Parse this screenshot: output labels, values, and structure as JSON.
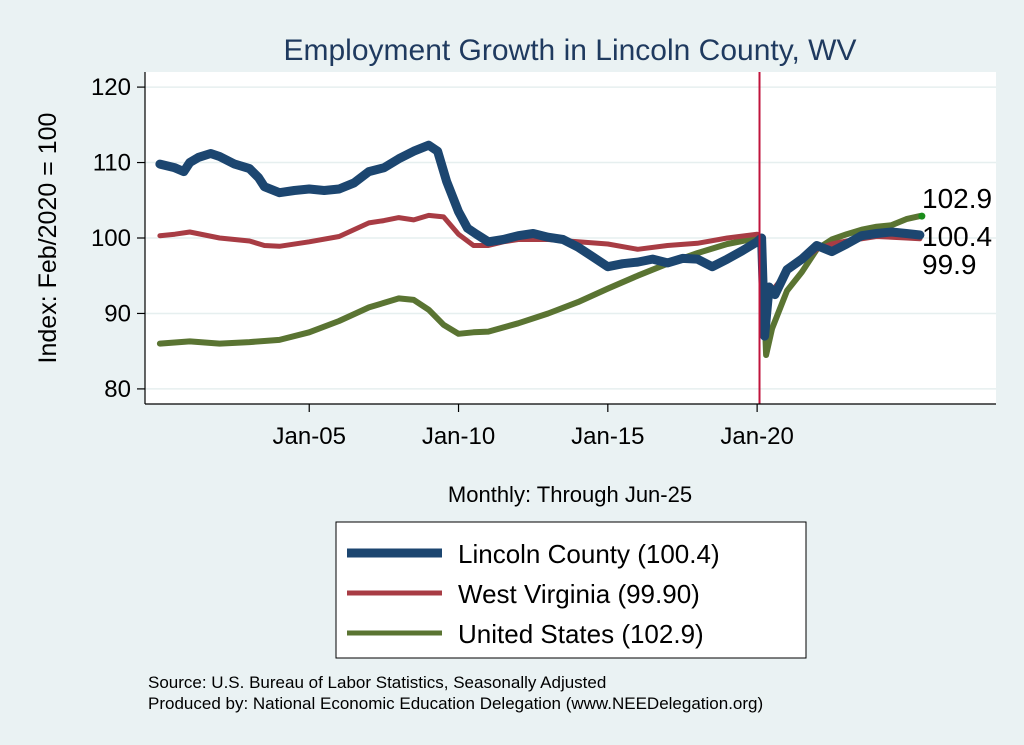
{
  "chart_data": {
    "type": "line",
    "title": "Employment Growth in Lincoln  County, WV",
    "ylabel": "Index: Feb/2020 = 100",
    "xlabel": "Monthly: Through Jun-25",
    "ylim": [
      78,
      122
    ],
    "xlim": [
      1999.5,
      2028.0
    ],
    "y_ticks": [
      80,
      90,
      100,
      110,
      120
    ],
    "x_ticks": [
      {
        "value": 2005.0,
        "label": "Jan-05"
      },
      {
        "value": 2010.0,
        "label": "Jan-10"
      },
      {
        "value": 2015.0,
        "label": "Jan-15"
      },
      {
        "value": 2020.0,
        "label": "Jan-20"
      }
    ],
    "reference_line_x": 2020.08,
    "series": [
      {
        "name": "Lincoln  County",
        "legend_label": "Lincoln  County (100.4)",
        "color": "#1c4670",
        "end_value": "100.4",
        "points": [
          [
            2000.0,
            109.8
          ],
          [
            2000.5,
            109.3
          ],
          [
            2000.8,
            108.8
          ],
          [
            2001.0,
            110.0
          ],
          [
            2001.3,
            110.7
          ],
          [
            2001.7,
            111.2
          ],
          [
            2002.0,
            110.8
          ],
          [
            2002.5,
            109.8
          ],
          [
            2003.0,
            109.2
          ],
          [
            2003.3,
            108.0
          ],
          [
            2003.5,
            106.8
          ],
          [
            2004.0,
            106.0
          ],
          [
            2004.5,
            106.3
          ],
          [
            2005.0,
            106.5
          ],
          [
            2005.5,
            106.3
          ],
          [
            2006.0,
            106.5
          ],
          [
            2006.5,
            107.3
          ],
          [
            2007.0,
            108.8
          ],
          [
            2007.5,
            109.3
          ],
          [
            2008.0,
            110.5
          ],
          [
            2008.5,
            111.5
          ],
          [
            2009.0,
            112.3
          ],
          [
            2009.3,
            111.5
          ],
          [
            2009.6,
            107.5
          ],
          [
            2010.0,
            103.5
          ],
          [
            2010.3,
            101.3
          ],
          [
            2010.6,
            100.5
          ],
          [
            2011.0,
            99.5
          ],
          [
            2011.5,
            99.8
          ],
          [
            2012.0,
            100.3
          ],
          [
            2012.5,
            100.6
          ],
          [
            2013.0,
            100.1
          ],
          [
            2013.5,
            99.8
          ],
          [
            2014.0,
            98.8
          ],
          [
            2014.5,
            97.5
          ],
          [
            2015.0,
            96.2
          ],
          [
            2015.5,
            96.6
          ],
          [
            2016.0,
            96.8
          ],
          [
            2016.5,
            97.2
          ],
          [
            2017.0,
            96.7
          ],
          [
            2017.5,
            97.3
          ],
          [
            2018.0,
            97.2
          ],
          [
            2018.5,
            96.2
          ],
          [
            2019.0,
            97.2
          ],
          [
            2019.5,
            98.3
          ],
          [
            2020.0,
            99.5
          ],
          [
            2020.15,
            100.0
          ],
          [
            2020.25,
            87.0
          ],
          [
            2020.4,
            93.5
          ],
          [
            2020.6,
            92.5
          ],
          [
            2021.0,
            95.8
          ],
          [
            2021.5,
            97.2
          ],
          [
            2022.0,
            99.0
          ],
          [
            2022.5,
            98.2
          ],
          [
            2023.0,
            99.2
          ],
          [
            2023.5,
            100.3
          ],
          [
            2024.0,
            100.6
          ],
          [
            2024.5,
            100.8
          ],
          [
            2025.0,
            100.6
          ],
          [
            2025.45,
            100.4
          ]
        ]
      },
      {
        "name": "West Virginia",
        "legend_label": "West Virginia (99.90)",
        "color": "#a83c44",
        "end_value": "99.9",
        "points": [
          [
            2000.0,
            100.3
          ],
          [
            2000.5,
            100.5
          ],
          [
            2001.0,
            100.8
          ],
          [
            2001.5,
            100.4
          ],
          [
            2002.0,
            100.0
          ],
          [
            2003.0,
            99.6
          ],
          [
            2003.5,
            99.0
          ],
          [
            2004.0,
            98.9
          ],
          [
            2005.0,
            99.5
          ],
          [
            2006.0,
            100.2
          ],
          [
            2007.0,
            102.0
          ],
          [
            2007.5,
            102.3
          ],
          [
            2008.0,
            102.7
          ],
          [
            2008.5,
            102.4
          ],
          [
            2009.0,
            103.0
          ],
          [
            2009.5,
            102.8
          ],
          [
            2010.0,
            100.5
          ],
          [
            2010.5,
            99.0
          ],
          [
            2011.0,
            99.0
          ],
          [
            2011.5,
            99.5
          ],
          [
            2012.0,
            99.8
          ],
          [
            2013.0,
            99.8
          ],
          [
            2014.0,
            99.5
          ],
          [
            2015.0,
            99.2
          ],
          [
            2016.0,
            98.5
          ],
          [
            2017.0,
            99.0
          ],
          [
            2018.0,
            99.3
          ],
          [
            2019.0,
            100.0
          ],
          [
            2020.0,
            100.5
          ],
          [
            2020.15,
            100.0
          ],
          [
            2020.25,
            90.0
          ],
          [
            2020.5,
            93.0
          ],
          [
            2021.0,
            95.5
          ],
          [
            2021.5,
            97.0
          ],
          [
            2022.0,
            98.5
          ],
          [
            2022.5,
            99.2
          ],
          [
            2023.0,
            99.6
          ],
          [
            2024.0,
            100.2
          ],
          [
            2025.0,
            100.0
          ],
          [
            2025.45,
            99.9
          ]
        ]
      },
      {
        "name": "United States",
        "legend_label": "United States (102.9)",
        "color": "#5a7432",
        "end_value": "102.9",
        "points": [
          [
            2000.0,
            86.0
          ],
          [
            2001.0,
            86.3
          ],
          [
            2002.0,
            86.0
          ],
          [
            2003.0,
            86.2
          ],
          [
            2004.0,
            86.5
          ],
          [
            2005.0,
            87.5
          ],
          [
            2006.0,
            89.0
          ],
          [
            2007.0,
            90.8
          ],
          [
            2008.0,
            92.0
          ],
          [
            2008.5,
            91.8
          ],
          [
            2009.0,
            90.5
          ],
          [
            2009.5,
            88.5
          ],
          [
            2010.0,
            87.3
          ],
          [
            2010.5,
            87.5
          ],
          [
            2011.0,
            87.6
          ],
          [
            2012.0,
            88.7
          ],
          [
            2013.0,
            90.0
          ],
          [
            2014.0,
            91.5
          ],
          [
            2015.0,
            93.3
          ],
          [
            2016.0,
            95.0
          ],
          [
            2017.0,
            96.6
          ],
          [
            2018.0,
            98.0
          ],
          [
            2019.0,
            99.2
          ],
          [
            2020.0,
            100.0
          ],
          [
            2020.15,
            100.0
          ],
          [
            2020.3,
            84.5
          ],
          [
            2020.5,
            88.0
          ],
          [
            2021.0,
            93.0
          ],
          [
            2021.5,
            95.5
          ],
          [
            2022.0,
            98.5
          ],
          [
            2022.5,
            99.8
          ],
          [
            2023.0,
            100.5
          ],
          [
            2023.5,
            101.1
          ],
          [
            2024.0,
            101.5
          ],
          [
            2024.5,
            101.7
          ],
          [
            2025.0,
            102.5
          ],
          [
            2025.45,
            102.9
          ]
        ]
      }
    ]
  },
  "footer": {
    "source": "Source: U.S. Bureau of Labor Statistics, Seasonally Adjusted",
    "produced": "Produced by: National Economic Education Delegation (www.NEEDelegation.org)"
  }
}
